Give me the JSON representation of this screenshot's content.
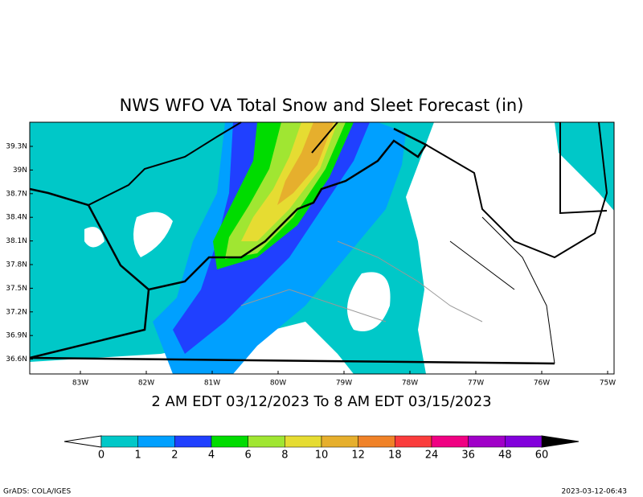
{
  "title": "NWS WFO VA Total Snow and Sleet Forecast (in)",
  "subtitle": "2 AM EDT 03/12/2023 To 8 AM EDT 03/15/2023",
  "lat_labels": [
    "39.3N",
    "39N",
    "38.7N",
    "38.4N",
    "38.1N",
    "37.8N",
    "37.5N",
    "37.2N",
    "36.9N",
    "36.6N"
  ],
  "lon_labels": [
    "83W",
    "82W",
    "81W",
    "80W",
    "79W",
    "78W",
    "77W",
    "76W",
    "75W"
  ],
  "colorbar": {
    "labels": [
      "0",
      "1",
      "2",
      "4",
      "6",
      "8",
      "10",
      "12",
      "18",
      "24",
      "36",
      "48",
      "60"
    ],
    "colors": [
      "#00c8c8",
      "#00a0ff",
      "#2040ff",
      "#00dc00",
      "#a0e632",
      "#e6dc32",
      "#e6af2d",
      "#f08228",
      "#fa3c3c",
      "#f00082",
      "#a000c8",
      "#8200dc"
    ]
  },
  "footer_left": "GrADS: COLA/IGES",
  "footer_right": "2023-03-12-06:43"
}
